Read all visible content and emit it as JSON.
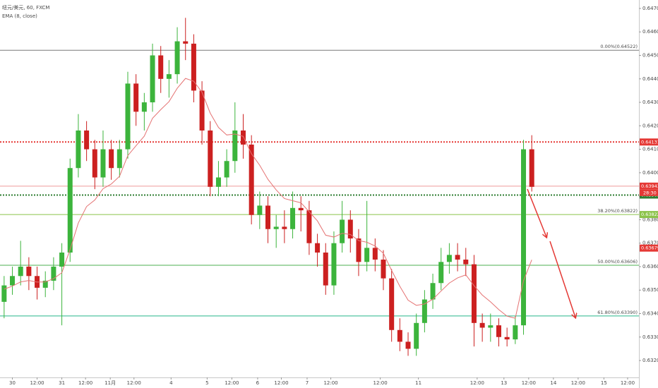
{
  "chart_data": {
    "type": "candlestick",
    "title": "纽元/美元, 60, FXCM",
    "indicator_label": "EMA (8, close)",
    "up_color": "#3cb43c",
    "down_color": "#cc2020",
    "ema_color": "#e57373",
    "x": [
      2,
      6,
      10,
      14,
      18,
      22,
      26,
      30,
      34,
      38,
      42,
      46,
      50,
      54,
      58,
      62,
      66,
      70,
      74,
      78,
      82,
      86,
      90,
      94,
      98,
      102,
      106,
      110,
      114,
      118,
      122,
      126,
      130,
      134,
      138,
      142,
      146,
      150,
      154,
      158,
      162,
      166,
      170,
      174,
      178,
      182,
      186,
      190,
      194,
      198,
      202,
      206,
      210,
      214,
      218,
      222,
      226,
      230,
      234,
      238,
      242,
      246,
      250,
      254,
      258
    ],
    "open": [
      0.6345,
      0.6352,
      0.6356,
      0.636,
      0.6356,
      0.6351,
      0.6354,
      0.636,
      0.6366,
      0.6402,
      0.6418,
      0.641,
      0.6398,
      0.641,
      0.6402,
      0.641,
      0.6438,
      0.6426,
      0.643,
      0.645,
      0.644,
      0.6442,
      0.6456,
      0.6455,
      0.6435,
      0.6418,
      0.6394,
      0.6398,
      0.6405,
      0.6418,
      0.6412,
      0.6382,
      0.6386,
      0.6376,
      0.6377,
      0.6376,
      0.6385,
      0.6384,
      0.637,
      0.6366,
      0.6352,
      0.637,
      0.638,
      0.6372,
      0.6362,
      0.6368,
      0.6363,
      0.6355,
      0.6333,
      0.6328,
      0.6325,
      0.6336,
      0.6346,
      0.6353,
      0.6362,
      0.6365,
      0.6363,
      0.6361,
      0.6336,
      0.6334,
      0.6335,
      0.633,
      0.6329,
      0.6335,
      0.641
    ],
    "high": [
      0.6356,
      0.636,
      0.6371,
      0.6364,
      0.636,
      0.6358,
      0.6364,
      0.637,
      0.6406,
      0.6425,
      0.6422,
      0.6414,
      0.6418,
      0.6414,
      0.6414,
      0.6443,
      0.6442,
      0.6434,
      0.6455,
      0.6454,
      0.6448,
      0.6462,
      0.6466,
      0.6459,
      0.6439,
      0.6422,
      0.6405,
      0.641,
      0.643,
      0.6425,
      0.6416,
      0.6392,
      0.639,
      0.6382,
      0.6384,
      0.6392,
      0.639,
      0.6388,
      0.6374,
      0.637,
      0.6375,
      0.6388,
      0.6384,
      0.6376,
      0.6388,
      0.6372,
      0.6367,
      0.6359,
      0.6338,
      0.6332,
      0.634,
      0.635,
      0.6357,
      0.6368,
      0.637,
      0.637,
      0.6368,
      0.6365,
      0.634,
      0.634,
      0.6338,
      0.6334,
      0.6339,
      0.6414,
      0.6416
    ],
    "low": [
      0.6338,
      0.6348,
      0.6352,
      0.635,
      0.6346,
      0.6347,
      0.635,
      0.6335,
      0.6362,
      0.6398,
      0.6405,
      0.6393,
      0.6394,
      0.6397,
      0.6398,
      0.6406,
      0.642,
      0.6418,
      0.6426,
      0.6434,
      0.6432,
      0.6438,
      0.6448,
      0.643,
      0.6412,
      0.639,
      0.639,
      0.6394,
      0.64,
      0.6406,
      0.6378,
      0.6376,
      0.637,
      0.6368,
      0.637,
      0.6372,
      0.6375,
      0.6365,
      0.636,
      0.6348,
      0.6348,
      0.6366,
      0.6366,
      0.6356,
      0.6358,
      0.6358,
      0.635,
      0.6328,
      0.6324,
      0.6322,
      0.6322,
      0.6332,
      0.6342,
      0.635,
      0.6357,
      0.6358,
      0.6356,
      0.6326,
      0.6328,
      0.6328,
      0.6326,
      0.6326,
      0.6327,
      0.6331,
      0.6392
    ],
    "close": [
      0.6352,
      0.6356,
      0.636,
      0.6356,
      0.6351,
      0.6354,
      0.636,
      0.6366,
      0.6402,
      0.6418,
      0.641,
      0.6398,
      0.641,
      0.6402,
      0.641,
      0.6438,
      0.6426,
      0.643,
      0.645,
      0.644,
      0.6442,
      0.6456,
      0.6455,
      0.6435,
      0.6418,
      0.6394,
      0.6398,
      0.6405,
      0.6418,
      0.6412,
      0.6382,
      0.6386,
      0.6376,
      0.6377,
      0.6376,
      0.6385,
      0.6384,
      0.637,
      0.6366,
      0.6352,
      0.637,
      0.638,
      0.6372,
      0.6362,
      0.6368,
      0.6363,
      0.6355,
      0.6333,
      0.6328,
      0.6325,
      0.6336,
      0.6346,
      0.6353,
      0.6362,
      0.6365,
      0.6363,
      0.6361,
      0.6336,
      0.6334,
      0.6335,
      0.633,
      0.6329,
      0.6335,
      0.641,
      0.6394
    ],
    "ema": [
      0.63504,
      0.63517,
      0.63535,
      0.63541,
      0.63534,
      0.63535,
      0.63549,
      0.63574,
      0.63673,
      0.63786,
      0.63856,
      0.63884,
      0.63932,
      0.63952,
      0.63985,
      0.64073,
      0.64115,
      0.64156,
      0.64232,
      0.64269,
      0.64303,
      0.6436,
      0.64402,
      0.6439,
      0.64343,
      0.64254,
      0.64193,
      0.64161,
      0.64165,
      0.64155,
      0.64081,
      0.64032,
      0.63972,
      0.63927,
      0.6389,
      0.63881,
      0.63872,
      0.63834,
      0.63795,
      0.63734,
      0.63726,
      0.63742,
      0.63737,
      0.63711,
      0.63704,
      0.63688,
      0.63657,
      0.63584,
      0.63516,
      0.63457,
      0.63435,
      0.63441,
      0.63461,
      0.63496,
      0.6353,
      0.63552,
      0.63565,
      0.63519,
      0.63479,
      0.6345,
      0.63417,
      0.63389,
      0.6338,
      0.6354,
      0.63629
    ],
    "xlim": [
      0,
      310
    ],
    "ylim": [
      0.63128,
      0.64736
    ],
    "xticks": [
      {
        "value": 6,
        "label": "30"
      },
      {
        "value": 18,
        "label": "12:00"
      },
      {
        "value": 30,
        "label": "31"
      },
      {
        "value": 41.5,
        "label": "12:00"
      },
      {
        "value": 53.5,
        "label": "11月"
      },
      {
        "value": 65,
        "label": "12:00"
      },
      {
        "value": 83,
        "label": "4"
      },
      {
        "value": 100.5,
        "label": "5"
      },
      {
        "value": 112.5,
        "label": "12:00"
      },
      {
        "value": 125,
        "label": "6"
      },
      {
        "value": 136.5,
        "label": "12:00"
      },
      {
        "value": 149,
        "label": "7"
      },
      {
        "value": 160.5,
        "label": "12:00"
      },
      {
        "value": 184.5,
        "label": "12:00"
      },
      {
        "value": 203,
        "label": "11"
      },
      {
        "value": 231.5,
        "label": "12:00"
      },
      {
        "value": 244.5,
        "label": "13"
      },
      {
        "value": 256.5,
        "label": "12:00"
      },
      {
        "value": 268.5,
        "label": "14"
      },
      {
        "value": 280.5,
        "label": "12:00"
      },
      {
        "value": 293,
        "label": "15"
      },
      {
        "value": 304.5,
        "label": "12:00"
      }
    ],
    "yticks": [
      {
        "value": 0.632,
        "label": "0.63200"
      },
      {
        "value": 0.633,
        "label": "0.63300"
      },
      {
        "value": 0.634,
        "label": "0.63400"
      },
      {
        "value": 0.635,
        "label": "0.63500"
      },
      {
        "value": 0.636,
        "label": "0.63600"
      },
      {
        "value": 0.637,
        "label": "0.63700"
      },
      {
        "value": 0.638,
        "label": "0.63800"
      },
      {
        "value": 0.639,
        "label": "0.63900"
      },
      {
        "value": 0.64,
        "label": "0.64000"
      },
      {
        "value": 0.641,
        "label": "0.64100"
      },
      {
        "value": 0.642,
        "label": "0.64200"
      },
      {
        "value": 0.643,
        "label": "0.64300"
      },
      {
        "value": 0.644,
        "label": "0.64400"
      },
      {
        "value": 0.645,
        "label": "0.64500"
      },
      {
        "value": 0.646,
        "label": "0.64600"
      },
      {
        "value": 0.647,
        "label": "0.64700"
      }
    ],
    "levels": [
      {
        "value": 0.64522,
        "label": "0.00%(0.64522)",
        "color": "#787878",
        "style": "solid"
      },
      {
        "value": 0.63822,
        "label": "38.20%(0.63822)",
        "color": "#8bc34a",
        "style": "solid"
      },
      {
        "value": 0.63606,
        "label": "50.00%(0.63606)",
        "color": "#4caf50",
        "style": "solid"
      },
      {
        "value": 0.6339,
        "label": "61.80%(0.63390)",
        "color": "#26b88a",
        "style": "solid"
      },
      {
        "value": 0.64131,
        "color": "#e53935",
        "style": "dotted"
      },
      {
        "value": 0.63905,
        "color": "#2e7d32",
        "style": "dotted"
      },
      {
        "value": 0.63943,
        "color": "#ef9a9a",
        "style": "solid"
      }
    ],
    "price_tags": [
      {
        "value": 0.64131,
        "label": "0.64131",
        "color": "#e53935"
      },
      {
        "value": 0.63943,
        "label": "0.63943",
        "color": "#e53935"
      },
      {
        "value": 0.63905,
        "label": "0.63905",
        "color": "#2e7d32"
      },
      {
        "value": 0.63822,
        "label": "0.63822",
        "color": "#8bc34a"
      },
      {
        "value": 0.63679,
        "label": "0.63679",
        "color": "#e53935"
      }
    ],
    "countdown": "28:30"
  }
}
